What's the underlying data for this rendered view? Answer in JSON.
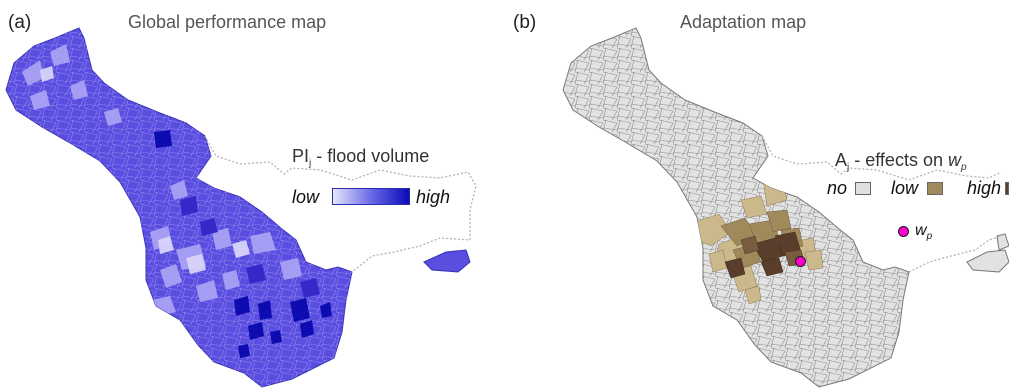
{
  "panel_a": {
    "label": "(a)",
    "title": "Global performance map",
    "legend": {
      "title_main": "PI",
      "title_sub": "j",
      "title_rest": " - flood volume",
      "low_label": "low",
      "high_label": "high",
      "low_color": "#e6e6fb",
      "high_color": "#0a0ab8"
    },
    "base_color": "#5a4ee0"
  },
  "panel_b": {
    "label": "(b)",
    "title": "Adaptation map",
    "legend": {
      "title_main": "A",
      "title_sub": "j",
      "title_rest": " - effects on ",
      "title_var": "w",
      "title_var_sub": "p",
      "no_label": "no",
      "low_label": "low",
      "high_label": "high",
      "no_color": "#e0e0e0",
      "low_color": "#a08a5c",
      "high_color": "#5a3e2b"
    },
    "point": {
      "symbol": "w",
      "symbol_sub": "p",
      "color": "#ff00cc"
    },
    "base_color": "#e2e2e2"
  }
}
